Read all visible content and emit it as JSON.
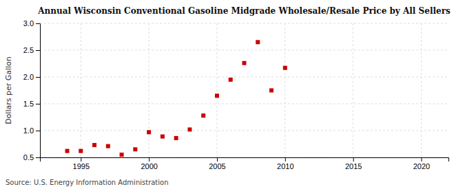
{
  "chart_data": {
    "type": "scatter",
    "title": "Annual Wisconsin Conventional Gasoline Midgrade Wholesale/Resale Price by All Sellers",
    "ylabel": "Dollars per Gallon",
    "source": "Source: U.S. Energy Information Administration",
    "x": [
      1994,
      1995,
      1996,
      1997,
      1998,
      1999,
      2000,
      2001,
      2002,
      2003,
      2004,
      2005,
      2006,
      2007,
      2008,
      2009,
      2010
    ],
    "values": [
      0.62,
      0.62,
      0.73,
      0.71,
      0.55,
      0.65,
      0.97,
      0.89,
      0.86,
      1.02,
      1.28,
      1.65,
      1.95,
      2.26,
      2.65,
      1.75,
      2.17
    ],
    "color": "#cc0000",
    "marker": "square",
    "xlim": [
      1992,
      2022
    ],
    "ylim": [
      0.5,
      3.0
    ],
    "xticks": [
      1995,
      2000,
      2005,
      2010,
      2015,
      2020
    ],
    "yticks": [
      0.5,
      {
        "value": 1.0,
        "label": "1.0"
      },
      1.5,
      {
        "value": 2.0,
        "label": "2.0"
      },
      2.5,
      {
        "value": 3.0,
        "label": "3.0"
      }
    ],
    "grid": true
  }
}
